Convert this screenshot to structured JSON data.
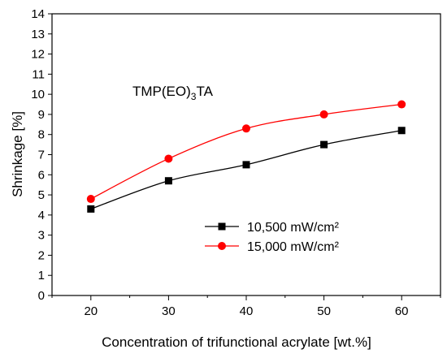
{
  "chart_data": {
    "type": "line",
    "xlabel": "Concentration of trifunctional acrylate [wt.%]",
    "ylabel": "Shrinkage [%]",
    "xlim": [
      15,
      65
    ],
    "ylim": [
      0,
      14
    ],
    "x": [
      20,
      30,
      40,
      50,
      60
    ],
    "xticks": [
      "20",
      "30",
      "40",
      "50",
      "60"
    ],
    "yticks": [
      "0",
      "1",
      "2",
      "3",
      "4",
      "5",
      "6",
      "7",
      "8",
      "9",
      "10",
      "11",
      "12",
      "13",
      "14"
    ],
    "annotation": {
      "prefix": "TMP(EO)",
      "subscript": "3",
      "suffix": "TA"
    },
    "legend_position": "lower-right",
    "grid": false,
    "series": [
      {
        "name": "10,500 mW/cm²",
        "color": "#000000",
        "marker": "square",
        "values": [
          4.3,
          5.7,
          6.5,
          7.5,
          8.2
        ]
      },
      {
        "name": "15,000 mW/cm²",
        "color": "#ff0000",
        "marker": "circle",
        "values": [
          4.8,
          6.8,
          8.3,
          9.0,
          9.5
        ]
      }
    ]
  }
}
